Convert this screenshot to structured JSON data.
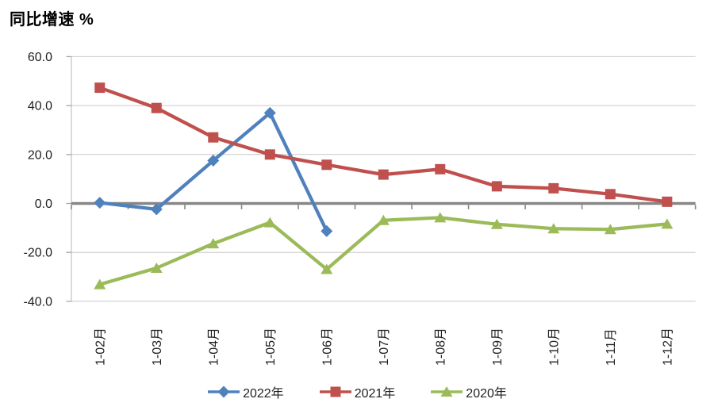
{
  "chart_data": {
    "type": "line",
    "title": "同比增速 %",
    "categories": [
      "1-02月",
      "1-03月",
      "1-04月",
      "1-05月",
      "1-06月",
      "1-07月",
      "1-08月",
      "1-09月",
      "1-10月",
      "1-11月",
      "1-12月"
    ],
    "series": [
      {
        "name": "2022年",
        "marker": "diamond",
        "color": "#4F81BD",
        "values": [
          0.3,
          -2.4,
          17.5,
          37.0,
          -11.3,
          null,
          null,
          null,
          null,
          null,
          null
        ]
      },
      {
        "name": "2021年",
        "marker": "square",
        "color": "#C0504D",
        "values": [
          47.3,
          39.0,
          27.0,
          20.0,
          15.8,
          11.8,
          14.0,
          7.0,
          6.2,
          3.8,
          0.7
        ]
      },
      {
        "name": "2020年",
        "marker": "triangle",
        "color": "#9BBB59",
        "values": [
          -33.1,
          -26.4,
          -16.4,
          -7.8,
          -26.9,
          -6.9,
          -5.8,
          -8.5,
          -10.3,
          -10.6,
          -8.4
        ]
      }
    ],
    "ylim": [
      -40,
      60
    ],
    "yticks": [
      60,
      40,
      20,
      0,
      -20,
      -40
    ],
    "ytick_labels": [
      "60.0",
      "40.0",
      "20.0",
      "0.0",
      "-20.0",
      "-40.0"
    ],
    "grid": true,
    "legend_position": "bottom",
    "colors": {
      "gridline": "#C9C9C9",
      "zero_axis": "#868686",
      "axis_line": "#C0C0C0",
      "tick_mark": "#9E9E9E",
      "text": "#1F1F1F"
    }
  }
}
